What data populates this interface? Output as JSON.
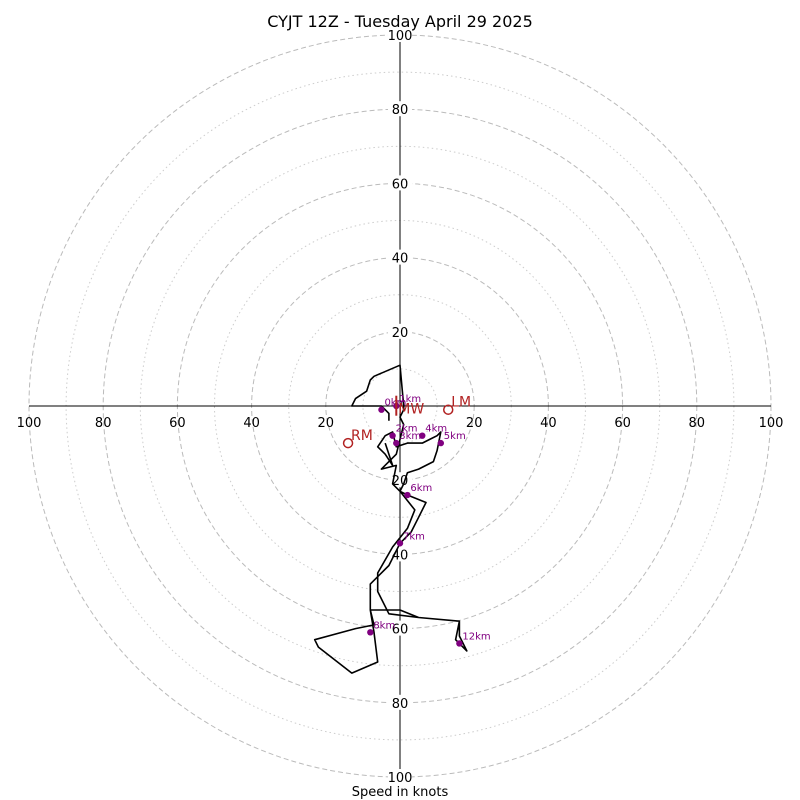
{
  "chart_data": {
    "type": "hodograph",
    "title": "CYJT 12Z - Tuesday April 29 2025",
    "xlabel": "Speed in knots",
    "range": [
      -100,
      100
    ],
    "major_rings": [
      20,
      40,
      60,
      80,
      100
    ],
    "minor_rings": [
      10,
      30,
      50,
      70,
      90
    ],
    "axis_ticks": {
      "x": [
        "100",
        "80",
        "60",
        "40",
        "20",
        "20",
        "40",
        "60",
        "80",
        "100"
      ],
      "y": [
        "100",
        "80",
        "60",
        "40",
        "20",
        "20",
        "40",
        "60",
        "80",
        "100"
      ]
    },
    "colors": {
      "trace": "#000000",
      "height_markers": "#800080",
      "storm_motion": "#b22222",
      "major_ring": "#bbbbbb",
      "minor_ring": "#cccccc"
    },
    "trace": [
      [
        -4,
        -10
      ],
      [
        -3,
        -13
      ],
      [
        -2,
        -16
      ],
      [
        -4,
        -13
      ],
      [
        -6,
        -11
      ],
      [
        -4,
        -8
      ],
      [
        -2,
        -7
      ],
      [
        -1,
        -11
      ],
      [
        2,
        -10
      ],
      [
        2,
        -10
      ],
      [
        6,
        -10
      ],
      [
        8,
        -9
      ],
      [
        10,
        -8
      ],
      [
        11,
        -7
      ],
      [
        11,
        -7
      ],
      [
        10,
        -12
      ],
      [
        9,
        -15
      ],
      [
        5,
        -17
      ],
      [
        2,
        -18
      ],
      [
        1,
        -21
      ],
      [
        0,
        -23
      ],
      [
        2,
        -24
      ],
      [
        7,
        -26
      ],
      [
        5,
        -30
      ],
      [
        3,
        -34
      ],
      [
        0,
        -37
      ],
      [
        -3,
        -43
      ],
      [
        -8,
        -48
      ],
      [
        -8,
        -55
      ],
      [
        -7,
        -59
      ],
      [
        -12,
        -60
      ],
      [
        -23,
        -63
      ],
      [
        -22,
        -65
      ],
      [
        -13,
        -72
      ],
      [
        -6,
        -69
      ],
      [
        -7,
        -61
      ],
      [
        -8,
        -55
      ],
      [
        0,
        -55
      ],
      [
        5,
        -57
      ],
      [
        16,
        -58
      ],
      [
        16,
        -62
      ],
      [
        18,
        -66
      ],
      [
        15,
        -63
      ],
      [
        16,
        -58
      ],
      [
        5,
        -57
      ],
      [
        -3,
        -56
      ],
      [
        -6,
        -50
      ],
      [
        -6,
        -45
      ],
      [
        -2,
        -38
      ],
      [
        2,
        -33
      ],
      [
        4,
        -28
      ],
      [
        0,
        -23
      ],
      [
        -2,
        -21
      ],
      [
        -1,
        -16
      ],
      [
        -5,
        -17
      ],
      [
        -1,
        -13
      ],
      [
        1,
        -5
      ],
      [
        0,
        -3
      ],
      [
        1,
        -1
      ],
      [
        1,
        0
      ],
      [
        0,
        11
      ],
      [
        -7,
        8
      ],
      [
        -8,
        7
      ],
      [
        -9,
        4
      ],
      [
        -12,
        2
      ],
      [
        -13,
        0
      ],
      [
        -5,
        0
      ],
      [
        -4,
        -1
      ],
      [
        -3,
        -2
      ],
      [
        -3,
        -4
      ]
    ],
    "height_markers": [
      {
        "label": "1km",
        "u": -1,
        "v": 0
      },
      {
        "label": "0km",
        "u": -5,
        "v": -1
      },
      {
        "label": "2km",
        "u": -2,
        "v": -8
      },
      {
        "label": "3km",
        "u": -1,
        "v": -10
      },
      {
        "label": "4km",
        "u": 6,
        "v": -8
      },
      {
        "label": "5km",
        "u": 11,
        "v": -10
      },
      {
        "label": "6km",
        "u": 2,
        "v": -24
      },
      {
        "label": "7km",
        "u": 0,
        "v": -37
      },
      {
        "label": "8km",
        "u": -8,
        "v": -61
      },
      {
        "label": "12km",
        "u": 16,
        "v": -64
      }
    ],
    "storm_motion": [
      {
        "label": "LM",
        "u": 13,
        "v": -1
      },
      {
        "label": "RM",
        "u": -14,
        "v": -10
      },
      {
        "label": "MW",
        "u": -1,
        "v": -1
      }
    ]
  }
}
